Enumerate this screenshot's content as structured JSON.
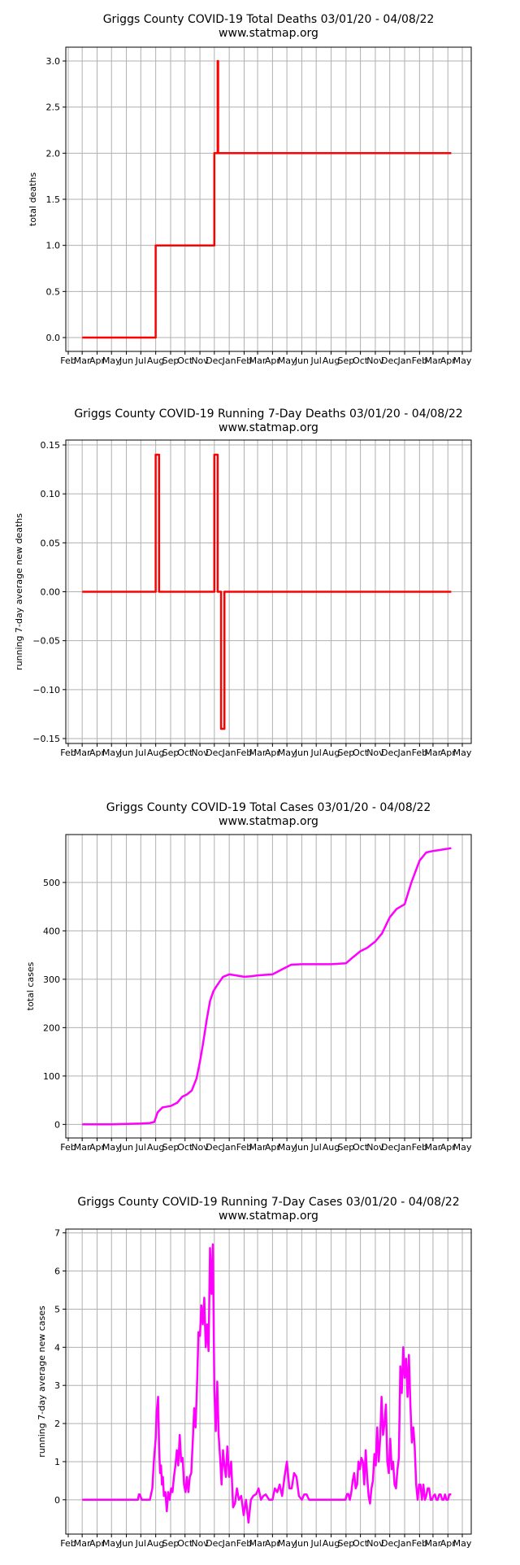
{
  "chart_data": [
    {
      "type": "line",
      "title": "Griggs County COVID-19 Total Deaths 03/01/20 - 04/08/22",
      "subtitle": "www.statmap.org",
      "xlabel": "",
      "ylabel": "total deaths",
      "ylim": [
        -0.15,
        3.15
      ],
      "yticks": [
        0.0,
        0.5,
        1.0,
        1.5,
        2.0,
        2.5,
        3.0
      ],
      "ytick_labels": [
        "0.0",
        "0.5",
        "1.0",
        "1.5",
        "2.0",
        "2.5",
        "3.0"
      ],
      "xticks": [
        "Feb",
        "Mar",
        "Apr",
        "May",
        "Jun",
        "Jul",
        "Aug",
        "Sep",
        "Oct",
        "Nov",
        "Dec",
        "Jan",
        "Feb",
        "Mar",
        "Apr",
        "May",
        "Jun",
        "Jul",
        "Aug",
        "Sep",
        "Oct",
        "Nov",
        "Dec",
        "Jan",
        "Feb",
        "Mar",
        "Apr",
        "May"
      ],
      "grid": true,
      "color": "#ff0000",
      "series": [
        {
          "x": [
            "2020-03-01",
            "2020-08-01",
            "2020-08-01",
            "2020-12-01",
            "2020-12-01",
            "2020-12-08",
            "2020-12-08",
            "2020-12-09",
            "2020-12-09",
            "2022-04-08"
          ],
          "values": [
            0,
            0,
            1,
            1,
            2,
            2,
            3,
            3,
            2,
            2
          ]
        }
      ]
    },
    {
      "type": "line",
      "title": "Griggs County COVID-19 Running 7-Day Deaths 03/01/20 - 04/08/22",
      "subtitle": "www.statmap.org",
      "xlabel": "",
      "ylabel": "running 7-day average new deaths",
      "ylim": [
        -0.155,
        0.155
      ],
      "yticks": [
        -0.15,
        -0.1,
        -0.05,
        0.0,
        0.05,
        0.1,
        0.15
      ],
      "ytick_labels": [
        "−0.15",
        "−0.10",
        "−0.05",
        "0.00",
        "0.05",
        "0.10",
        "0.15"
      ],
      "xticks": [
        "Feb",
        "Mar",
        "Apr",
        "May",
        "Jun",
        "Jul",
        "Aug",
        "Sep",
        "Oct",
        "Nov",
        "Dec",
        "Jan",
        "Feb",
        "Mar",
        "Apr",
        "May",
        "Jun",
        "Jul",
        "Aug",
        "Sep",
        "Oct",
        "Nov",
        "Dec",
        "Jan",
        "Feb",
        "Mar",
        "Apr",
        "May"
      ],
      "grid": true,
      "color": "#ff0000",
      "series": [
        {
          "x": [
            "2020-03-01",
            "2020-08-01",
            "2020-08-01",
            "2020-08-08",
            "2020-08-08",
            "2020-12-01",
            "2020-12-01",
            "2020-12-08",
            "2020-12-08",
            "2020-12-15",
            "2020-12-15",
            "2020-12-22",
            "2020-12-22",
            "2022-04-08"
          ],
          "values": [
            0,
            0,
            0.14,
            0.14,
            0,
            0,
            0.14,
            0.14,
            0,
            0,
            -0.14,
            -0.14,
            0,
            0
          ]
        }
      ]
    },
    {
      "type": "line",
      "title": "Griggs County COVID-19 Total Cases 03/01/20 - 04/08/22",
      "subtitle": "www.statmap.org",
      "xlabel": "",
      "ylabel": "total cases",
      "ylim": [
        -28,
        599
      ],
      "yticks": [
        0,
        100,
        200,
        300,
        400,
        500
      ],
      "ytick_labels": [
        "0",
        "100",
        "200",
        "300",
        "400",
        "500"
      ],
      "xticks": [
        "Feb",
        "Mar",
        "Apr",
        "May",
        "Jun",
        "Jul",
        "Aug",
        "Sep",
        "Oct",
        "Nov",
        "Dec",
        "Jan",
        "Feb",
        "Mar",
        "Apr",
        "May",
        "Jun",
        "Jul",
        "Aug",
        "Sep",
        "Oct",
        "Nov",
        "Dec",
        "Jan",
        "Feb",
        "Mar",
        "Apr",
        "May"
      ],
      "grid": true,
      "color": "#ff00ff",
      "series": [
        {
          "x": [
            "2020-03-01",
            "2020-04-01",
            "2020-05-01",
            "2020-06-01",
            "2020-07-01",
            "2020-07-20",
            "2020-07-29",
            "2020-08-05",
            "2020-08-15",
            "2020-09-01",
            "2020-09-15",
            "2020-09-25",
            "2020-10-05",
            "2020-10-15",
            "2020-10-25",
            "2020-11-01",
            "2020-11-08",
            "2020-11-15",
            "2020-11-22",
            "2020-11-29",
            "2020-12-05",
            "2020-12-12",
            "2020-12-19",
            "2021-01-01",
            "2021-01-15",
            "2021-02-01",
            "2021-02-15",
            "2021-03-01",
            "2021-04-01",
            "2021-04-20",
            "2021-05-10",
            "2021-06-01",
            "2021-07-01",
            "2021-08-01",
            "2021-09-01",
            "2021-09-15",
            "2021-10-01",
            "2021-10-15",
            "2021-11-01",
            "2021-11-15",
            "2021-12-01",
            "2021-12-15",
            "2022-01-01",
            "2022-01-15",
            "2022-02-01",
            "2022-02-15",
            "2022-03-01",
            "2022-03-15",
            "2022-04-08"
          ],
          "values": [
            0,
            0,
            0,
            1,
            2,
            3,
            5,
            25,
            35,
            38,
            45,
            57,
            62,
            70,
            95,
            130,
            170,
            215,
            255,
            275,
            285,
            295,
            305,
            310,
            308,
            305,
            306,
            308,
            310,
            320,
            330,
            331,
            331,
            331,
            333,
            345,
            358,
            365,
            378,
            395,
            428,
            445,
            455,
            500,
            545,
            562,
            565,
            567,
            571
          ]
        }
      ]
    },
    {
      "type": "line",
      "title": "Griggs County COVID-19 Running 7-Day Cases 03/01/20 - 04/08/22",
      "subtitle": "www.statmap.org",
      "xlabel": "",
      "ylabel": "running 7-day average new cases",
      "ylim": [
        -0.9,
        7.1
      ],
      "yticks": [
        0,
        1,
        2,
        3,
        4,
        5,
        6,
        7
      ],
      "ytick_labels": [
        "0",
        "1",
        "2",
        "3",
        "4",
        "5",
        "6",
        "7"
      ],
      "xticks": [
        "Feb",
        "Mar",
        "Apr",
        "May",
        "Jun",
        "Jul",
        "Aug",
        "Sep",
        "Oct",
        "Nov",
        "Dec",
        "Jan",
        "Feb",
        "Mar",
        "Apr",
        "May",
        "Jun",
        "Jul",
        "Aug",
        "Sep",
        "Oct",
        "Nov",
        "Dec",
        "Jan",
        "Feb",
        "Mar",
        "Apr",
        "May"
      ],
      "grid": true,
      "color": "#ff00ff",
      "series": [
        {
          "x": [
            "2020-03-01",
            "2020-06-25",
            "2020-06-27",
            "2020-06-29",
            "2020-07-03",
            "2020-07-06",
            "2020-07-20",
            "2020-07-25",
            "2020-07-28",
            "2020-08-01",
            "2020-08-03",
            "2020-08-06",
            "2020-08-08",
            "2020-08-10",
            "2020-08-12",
            "2020-08-14",
            "2020-08-16",
            "2020-08-18",
            "2020-08-21",
            "2020-08-24",
            "2020-08-27",
            "2020-08-30",
            "2020-09-02",
            "2020-09-05",
            "2020-09-08",
            "2020-09-11",
            "2020-09-14",
            "2020-09-17",
            "2020-09-20",
            "2020-09-23",
            "2020-09-26",
            "2020-09-29",
            "2020-10-02",
            "2020-10-05",
            "2020-10-08",
            "2020-10-11",
            "2020-10-14",
            "2020-10-17",
            "2020-10-20",
            "2020-10-23",
            "2020-10-26",
            "2020-10-29",
            "2020-11-01",
            "2020-11-04",
            "2020-11-07",
            "2020-11-10",
            "2020-11-13",
            "2020-11-16",
            "2020-11-19",
            "2020-11-22",
            "2020-11-25",
            "2020-11-28",
            "2020-12-01",
            "2020-12-04",
            "2020-12-07",
            "2020-12-10",
            "2020-12-13",
            "2020-12-16",
            "2020-12-19",
            "2020-12-22",
            "2020-12-25",
            "2020-12-28",
            "2021-01-01",
            "2021-01-05",
            "2021-01-09",
            "2021-01-13",
            "2021-01-17",
            "2021-01-21",
            "2021-01-26",
            "2021-01-31",
            "2021-02-05",
            "2021-02-10",
            "2021-02-15",
            "2021-02-20",
            "2021-02-26",
            "2021-03-03",
            "2021-03-08",
            "2021-03-13",
            "2021-03-18",
            "2021-03-25",
            "2021-04-01",
            "2021-04-06",
            "2021-04-11",
            "2021-04-16",
            "2021-04-21",
            "2021-04-26",
            "2021-05-01",
            "2021-05-06",
            "2021-05-11",
            "2021-05-16",
            "2021-05-21",
            "2021-05-26",
            "2021-06-01",
            "2021-06-06",
            "2021-06-11",
            "2021-06-16",
            "2021-06-21",
            "2021-07-01",
            "2021-07-15",
            "2021-08-01",
            "2021-08-15",
            "2021-08-31",
            "2021-09-03",
            "2021-09-06",
            "2021-09-09",
            "2021-09-12",
            "2021-09-15",
            "2021-09-18",
            "2021-09-21",
            "2021-09-24",
            "2021-09-27",
            "2021-09-30",
            "2021-10-03",
            "2021-10-06",
            "2021-10-09",
            "2021-10-12",
            "2021-10-15",
            "2021-10-18",
            "2021-10-21",
            "2021-10-24",
            "2021-10-27",
            "2021-10-30",
            "2021-11-02",
            "2021-11-05",
            "2021-11-08",
            "2021-11-11",
            "2021-11-14",
            "2021-11-17",
            "2021-11-20",
            "2021-11-23",
            "2021-11-26",
            "2021-11-29",
            "2021-12-02",
            "2021-12-05",
            "2021-12-08",
            "2021-12-11",
            "2021-12-14",
            "2021-12-17",
            "2021-12-20",
            "2021-12-23",
            "2021-12-26",
            "2021-12-29",
            "2022-01-01",
            "2022-01-04",
            "2022-01-07",
            "2022-01-10",
            "2022-01-13",
            "2022-01-16",
            "2022-01-19",
            "2022-01-22",
            "2022-01-25",
            "2022-01-28",
            "2022-01-31",
            "2022-02-03",
            "2022-02-06",
            "2022-02-09",
            "2022-02-12",
            "2022-02-15",
            "2022-02-18",
            "2022-02-21",
            "2022-02-24",
            "2022-02-27",
            "2022-03-02",
            "2022-03-05",
            "2022-03-08",
            "2022-03-11",
            "2022-03-14",
            "2022-03-17",
            "2022-03-20",
            "2022-03-23",
            "2022-03-26",
            "2022-03-29",
            "2022-04-01",
            "2022-04-04",
            "2022-04-08"
          ],
          "values": [
            0,
            0,
            0.14,
            0.14,
            0,
            0,
            0,
            0.3,
            1.0,
            1.6,
            2.3,
            2.7,
            1.4,
            0.7,
            0.9,
            0.4,
            0.6,
            0.1,
            0.2,
            -0.3,
            0.2,
            0.0,
            0.3,
            0.2,
            0.6,
            0.9,
            1.3,
            0.9,
            1.7,
            1.0,
            1.1,
            0.4,
            0.2,
            0.6,
            0.2,
            0.6,
            0.7,
            1.5,
            2.4,
            1.9,
            3.0,
            4.4,
            4.3,
            5.1,
            4.6,
            5.3,
            4.0,
            4.6,
            3.9,
            6.6,
            5.4,
            6.7,
            2.9,
            1.8,
            3.1,
            1.7,
            1.1,
            0.4,
            1.3,
            0.9,
            0.6,
            1.4,
            0.6,
            1.0,
            -0.2,
            -0.1,
            0.3,
            0.0,
            0.1,
            -0.4,
            0.0,
            -0.6,
            0.0,
            0.1,
            0.15,
            0.3,
            0.0,
            0.1,
            0.14,
            0.0,
            0.0,
            0.3,
            0.2,
            0.4,
            0.1,
            0.6,
            1.0,
            0.3,
            0.3,
            0.7,
            0.6,
            0.1,
            0.0,
            0.14,
            0.14,
            0.0,
            0.0,
            0.0,
            0.0,
            0.0,
            0.0,
            0.0,
            0.15,
            0.15,
            0.0,
            0.2,
            0.5,
            0.7,
            0.3,
            0.4,
            1.0,
            0.8,
            1.1,
            1.0,
            0.4,
            1.3,
            0.6,
            0.1,
            -0.1,
            0.3,
            0.5,
            1.2,
            0.9,
            1.9,
            1.0,
            1.6,
            2.7,
            1.7,
            2.0,
            2.5,
            1.0,
            0.7,
            1.6,
            0.8,
            1.0,
            0.4,
            0.3,
            0.8,
            1.1,
            3.5,
            2.8,
            4.0,
            3.2,
            3.7,
            2.7,
            3.8,
            2.5,
            1.5,
            1.9,
            1.4,
            0.4,
            0.0,
            0.4,
            0.4,
            0.0,
            0.4,
            0.0,
            0.1,
            0.3,
            0.3,
            0.0,
            0.0,
            0.1,
            0.14,
            0.0,
            0.0,
            0.14,
            0.14,
            0.0,
            0.0,
            0.14,
            0.0,
            0.0,
            0.14,
            0.14
          ]
        }
      ]
    }
  ]
}
